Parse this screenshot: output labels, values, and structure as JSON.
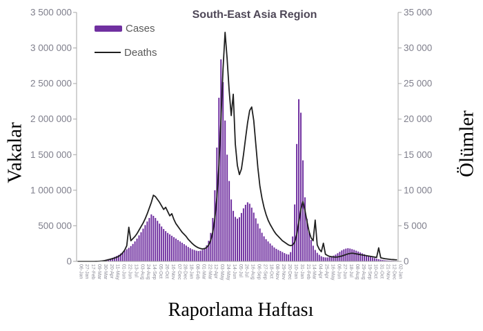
{
  "title": "South-East Asia Region",
  "legend": {
    "cases_label": "Cases",
    "deaths_label": "Deaths"
  },
  "axes": {
    "left": {
      "title": "Vakalar",
      "ticks": [
        "0",
        "500 000",
        "1 000 000",
        "1 500 000",
        "2 000 000",
        "2 500 000",
        "3 000 000",
        "3 500 000"
      ],
      "max": 3500000
    },
    "right": {
      "title": "Ölümler",
      "ticks": [
        "0",
        "5 000",
        "10 000",
        "15 000",
        "20 000",
        "25 000",
        "30 000",
        "35 000"
      ],
      "max": 35000
    },
    "x": {
      "title": "Raporlama Haftası",
      "tick_every_n_weeks": 3
    }
  },
  "colors": {
    "bars": "#7030a0",
    "line": "#1f1f1f",
    "title": "#4e4757",
    "y_tick_labels": "#7f7f8c",
    "x_tick_labels": "#8a8a96",
    "axis_line": "#a6a6a6",
    "legend_text": "#595959"
  },
  "chart_data": {
    "type": "combo",
    "title": "South-East Asia Region",
    "xlabel": "Raporlama Haftası",
    "ylabel_left": "Vakalar",
    "ylabel_right": "Ölümler",
    "x_unit": "week",
    "weeks": 157,
    "x_tick_every": 3,
    "x_tick_labels": [
      "06-Jan",
      "27-Jan",
      "17-Feb",
      "09-Mar",
      "30-Mar",
      "20-Apr",
      "11-May",
      "01-Jun",
      "22-Jun",
      "13-Jul",
      "03-Aug",
      "24-Aug",
      "14-Sep",
      "05-Oct",
      "26-Oct",
      "16-Nov",
      "07-Dec",
      "28-Dec",
      "18-Jan",
      "08-Feb",
      "01-Mar",
      "22-Mar",
      "12-Apr",
      "03-May",
      "24-May",
      "14-Jun",
      "05-Jul",
      "26-Jul",
      "16-Aug",
      "06-Sep",
      "27-Sep",
      "18-Oct",
      "08-Nov",
      "29-Nov",
      "20-Dec",
      "10-Jan",
      "31-Jan",
      "21-Feb",
      "14-Mar",
      "04-Apr",
      "25-Apr",
      "16-May",
      "06-Jun",
      "27-Jun",
      "18-Jul",
      "08-Aug",
      "29-Aug",
      "19-Sep",
      "10-Oct",
      "31-Oct",
      "21-Nov",
      "12-Dec",
      "02-Jan"
    ],
    "ylim_left": [
      0,
      3500000
    ],
    "ylim_right": [
      0,
      35000
    ],
    "grid": false,
    "legend_position": "top-left",
    "series": [
      {
        "name": "Cases",
        "type": "bar",
        "axis": "left",
        "color": "#7030a0",
        "values": [
          0,
          0,
          0,
          100,
          200,
          300,
          300,
          400,
          600,
          1500,
          3000,
          6000,
          12000,
          18000,
          25000,
          32000,
          40000,
          50000,
          62000,
          75000,
          90000,
          110000,
          130000,
          150000,
          170000,
          190000,
          215000,
          245000,
          280000,
          320000,
          365000,
          410000,
          460000,
          510000,
          560000,
          610000,
          660000,
          640000,
          610000,
          570000,
          530000,
          490000,
          455000,
          425000,
          400000,
          380000,
          360000,
          340000,
          320000,
          300000,
          280000,
          262000,
          242000,
          222000,
          202000,
          185000,
          170000,
          160000,
          150000,
          145000,
          150000,
          162000,
          185000,
          225000,
          290000,
          400000,
          610000,
          1000000,
          1600000,
          2300000,
          2840000,
          2520000,
          1980000,
          1500000,
          1130000,
          870000,
          710000,
          625000,
          600000,
          620000,
          680000,
          745000,
          795000,
          830000,
          810000,
          755000,
          685000,
          605000,
          530000,
          462000,
          402000,
          352000,
          312000,
          280000,
          251000,
          222000,
          196000,
          176000,
          160000,
          146000,
          131000,
          116000,
          102000,
          96000,
          130000,
          350000,
          800000,
          1650000,
          2280000,
          2090000,
          1420000,
          900000,
          600000,
          420000,
          300000,
          220000,
          160000,
          120000,
          92000,
          72000,
          60000,
          55000,
          55000,
          60000,
          70000,
          81000,
          95000,
          114000,
          134000,
          154000,
          169000,
          179000,
          185000,
          180000,
          172000,
          162000,
          150000,
          138000,
          125000,
          112000,
          100000,
          88000,
          76000,
          65000,
          55000,
          46000,
          38000,
          31000,
          25000,
          20000,
          16000,
          13000,
          11000,
          9000,
          8000,
          7000,
          6000
        ]
      },
      {
        "name": "Deaths",
        "type": "line",
        "axis": "right",
        "color": "#1f1f1f",
        "values": [
          0,
          0,
          0,
          0,
          0,
          0,
          0,
          0,
          0,
          5,
          12,
          30,
          60,
          100,
          160,
          230,
          300,
          380,
          470,
          570,
          700,
          900,
          1200,
          1600,
          2200,
          4800,
          2900,
          3200,
          3500,
          3900,
          4400,
          4900,
          5400,
          6000,
          6700,
          7500,
          8300,
          9300,
          9100,
          8700,
          8300,
          7800,
          7300,
          7600,
          7000,
          6400,
          6700,
          5900,
          5300,
          4900,
          4500,
          4100,
          3800,
          3500,
          3100,
          2800,
          2500,
          2250,
          2050,
          1900,
          1800,
          1750,
          1800,
          1950,
          2300,
          2950,
          4100,
          6000,
          9000,
          13500,
          20000,
          27000,
          32200,
          28500,
          24000,
          20500,
          23500,
          16500,
          13500,
          12200,
          13000,
          15000,
          17300,
          19500,
          21200,
          21700,
          19800,
          16500,
          13200,
          10600,
          8900,
          7600,
          6600,
          5800,
          5200,
          4700,
          4200,
          3800,
          3500,
          3200,
          2900,
          2700,
          2500,
          2300,
          2200,
          2300,
          2700,
          3800,
          5500,
          7300,
          8400,
          7200,
          5600,
          4200,
          3300,
          2900,
          5800,
          2300,
          1700,
          1350,
          2550,
          1000,
          820,
          700,
          650,
          620,
          600,
          620,
          680,
          750,
          850,
          950,
          1050,
          1100,
          1150,
          1100,
          1050,
          1000,
          950,
          900,
          850,
          800,
          750,
          700,
          650,
          600,
          550,
          1900,
          500,
          430,
          380,
          340,
          300,
          270,
          250,
          230,
          220
        ]
      }
    ]
  }
}
